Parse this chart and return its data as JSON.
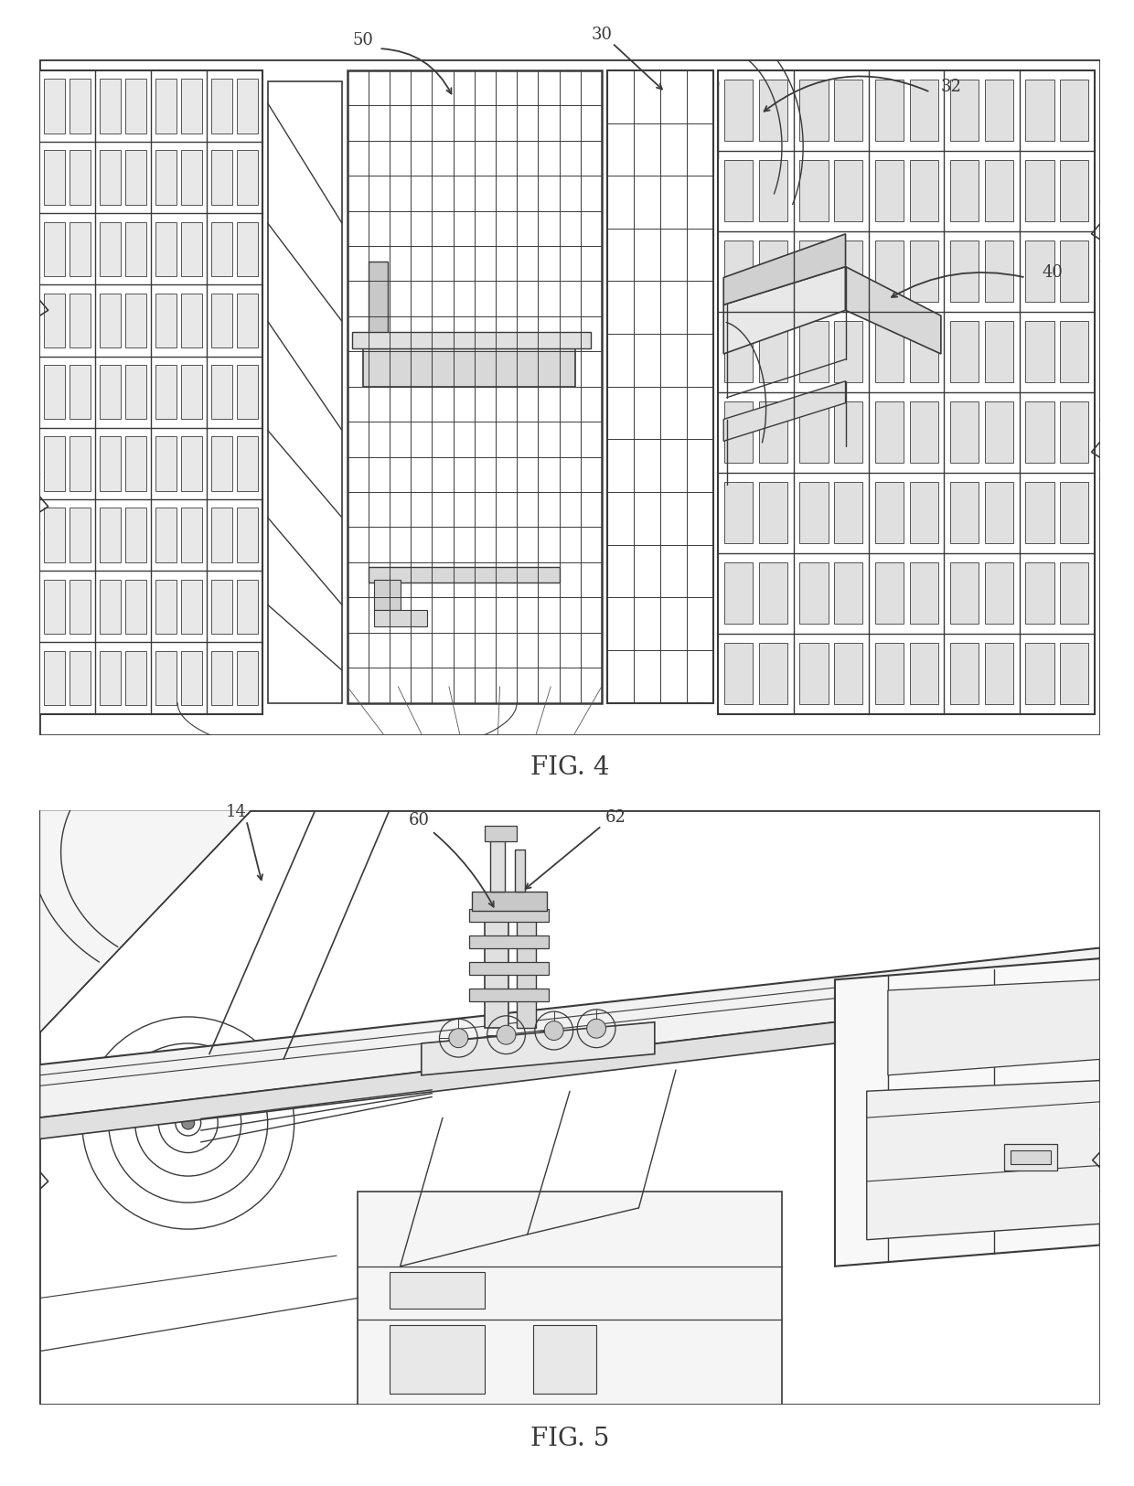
{
  "fig4_label": "FIG. 4",
  "fig5_label": "FIG. 5",
  "bg_color": "#ffffff",
  "lc": "#3a3a3a",
  "lw": 1.0,
  "fig_width": 12.4,
  "fig_height": 16.25
}
